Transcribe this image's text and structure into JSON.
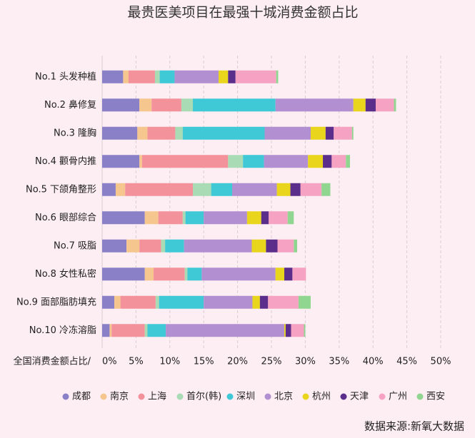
{
  "chart_data": {
    "type": "stacked-barh",
    "title": "最贵医美项目在最强十城消费金额占比",
    "xlabel": "全国消费金额占比/",
    "source": "数据来源:新氧大数据",
    "categories": [
      "No.1 头发种植",
      "No.2 鼻修复",
      "No.3 隆胸",
      "No.4 颧骨内推",
      "No.5 下颌角整形",
      "No.6 眼部综合",
      "No.7 吸脂",
      "No.8 女性私密",
      "No.9 面部脂肪填充",
      "No.10 冷冻溶脂"
    ],
    "series": [
      {
        "name": "成都",
        "color": "#8a80c8",
        "values": [
          3.1,
          5.5,
          5.2,
          5.5,
          2.0,
          6.3,
          3.6,
          6.3,
          1.8,
          1.1
        ]
      },
      {
        "name": "南京",
        "color": "#f6c68f",
        "values": [
          0.8,
          1.8,
          1.5,
          0.4,
          1.4,
          2.0,
          1.9,
          1.3,
          0.9,
          0.3
        ]
      },
      {
        "name": "上海",
        "color": "#f3929b",
        "values": [
          3.9,
          4.4,
          4.1,
          12.7,
          10.0,
          3.6,
          3.2,
          4.6,
          5.2,
          4.9
        ]
      },
      {
        "name": "首尔(韩)",
        "color": "#a9dbb4",
        "values": [
          0.7,
          1.7,
          1.1,
          2.2,
          2.7,
          0.4,
          0.6,
          0.4,
          0.5,
          0.4
        ]
      },
      {
        "name": "深圳",
        "color": "#3fc8d6",
        "values": [
          2.2,
          12.2,
          12.1,
          3.1,
          3.1,
          2.7,
          2.8,
          2.1,
          6.6,
          2.7
        ]
      },
      {
        "name": "北京",
        "color": "#b28fd0",
        "values": [
          6.5,
          11.5,
          6.8,
          6.5,
          6.6,
          6.4,
          10.0,
          10.9,
          7.2,
          17.5
        ]
      },
      {
        "name": "杭州",
        "color": "#e8d51c",
        "values": [
          1.4,
          1.8,
          2.2,
          2.2,
          2.0,
          2.1,
          2.1,
          1.3,
          1.1,
          0.2
        ]
      },
      {
        "name": "天津",
        "color": "#5c2e8c",
        "values": [
          1.1,
          1.5,
          1.2,
          1.3,
          1.5,
          1.1,
          1.7,
          1.2,
          1.2,
          0.8
        ]
      },
      {
        "name": "广州",
        "color": "#f6a2c2",
        "values": [
          6.0,
          2.7,
          2.7,
          2.1,
          3.1,
          2.8,
          2.4,
          2.0,
          4.5,
          1.9
        ]
      },
      {
        "name": "西安",
        "color": "#90d690",
        "values": [
          0.3,
          0.3,
          0.2,
          0.6,
          1.3,
          0.9,
          0.5,
          0,
          1.8,
          0.2
        ]
      }
    ],
    "xlim": [
      0,
      50
    ],
    "xticks": [
      {
        "value": 0,
        "label": "0%"
      },
      {
        "value": 5,
        "label": "5%"
      },
      {
        "value": 10,
        "label": "10%"
      },
      {
        "value": 15,
        "label": "15%"
      },
      {
        "value": 20,
        "label": "20%"
      },
      {
        "value": 25,
        "label": "25%"
      },
      {
        "value": 30,
        "label": "30%"
      },
      {
        "value": 35,
        "label": "35%"
      },
      {
        "value": 40,
        "label": "40%"
      },
      {
        "value": 45,
        "label": "45%"
      },
      {
        "value": 50,
        "label": "50%"
      }
    ],
    "grid": true
  }
}
